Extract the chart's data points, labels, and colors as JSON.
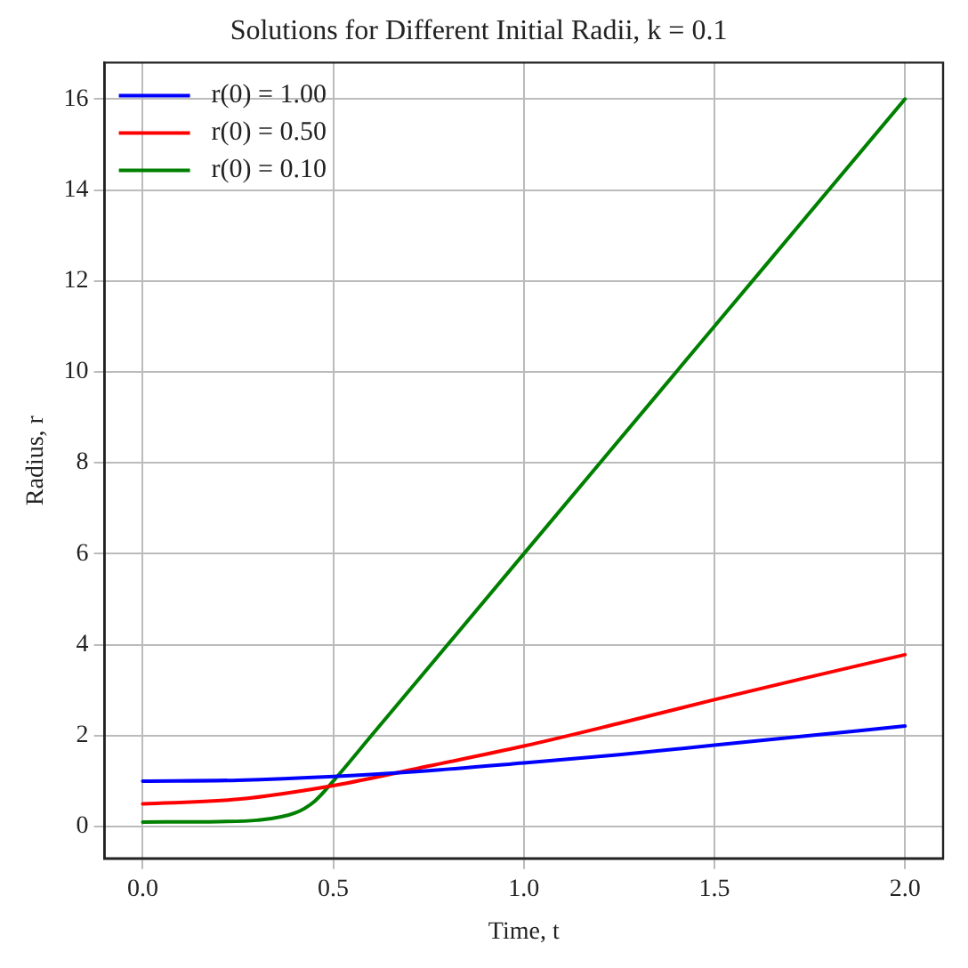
{
  "chart_data": {
    "type": "line",
    "title": "Solutions for Different Initial Radii, k = 0.1",
    "xlabel": "Time, t",
    "ylabel": "Radius, r",
    "xlim": [
      -0.1,
      2.1
    ],
    "xticks": [
      {
        "value": 0,
        "label": "0.0"
      },
      {
        "value": 0.5,
        "label": "0.5"
      },
      {
        "value": 1,
        "label": "1.0"
      },
      {
        "value": 1.5,
        "label": "1.5"
      },
      {
        "value": 2,
        "label": "2.0"
      }
    ],
    "ylim": [
      -0.7,
      16.8
    ],
    "yticks": [
      0,
      2,
      4,
      6,
      8,
      10,
      12,
      14,
      16
    ],
    "grid": true,
    "legend": "top left",
    "marker": "none",
    "line_style": "solid",
    "series": [
      {
        "name": "r(0) = 1.00",
        "color": "#0000ff",
        "x": [
          0,
          0.25,
          0.5,
          0.75,
          1,
          1.25,
          1.5,
          1.75,
          2
        ],
        "values": [
          1.0,
          1.02,
          1.1,
          1.23,
          1.4,
          1.58,
          1.79,
          2.0,
          2.21
        ]
      },
      {
        "name": "r(0) = 0.50",
        "color": "#ff0000",
        "x": [
          0,
          0.25,
          0.5,
          0.75,
          1,
          1.25,
          1.5,
          1.75,
          2
        ],
        "values": [
          0.5,
          0.6,
          0.9,
          1.33,
          1.77,
          2.27,
          2.79,
          3.29,
          3.78
        ]
      },
      {
        "name": "r(0) = 0.10",
        "color": "#008000",
        "x": [
          0,
          0.2,
          0.3,
          0.4,
          0.45,
          0.5,
          0.6,
          1,
          1.5,
          2
        ],
        "values": [
          0.1,
          0.11,
          0.14,
          0.3,
          0.55,
          1.0,
          2.0,
          6,
          11,
          16
        ]
      }
    ]
  }
}
